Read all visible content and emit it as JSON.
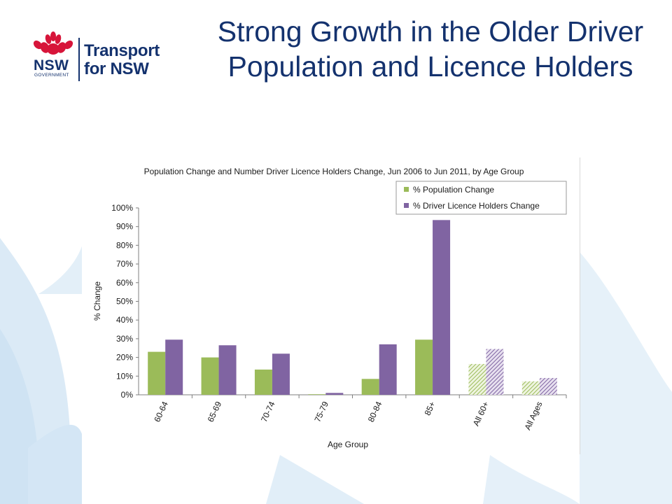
{
  "slide": {
    "title": "Strong Growth in the Older Driver Population and Licence Holders"
  },
  "logo": {
    "nsw": "NSW",
    "government": "GOVERNMENT",
    "transport": "Transport\nfor NSW"
  },
  "colors": {
    "title": "#14326e",
    "population": "#9bbb59",
    "licence": "#8064a2",
    "background_shape": "#dbeaf6"
  },
  "chart_data": {
    "type": "bar",
    "title": "Population Change and Number Driver Licence Holders Change, Jun 2006 to Jun 2011, by Age Group",
    "xlabel": "Age Group",
    "ylabel": "% Change",
    "ylim": [
      0,
      100
    ],
    "yticks": [
      "0%",
      "10%",
      "20%",
      "30%",
      "40%",
      "50%",
      "60%",
      "70%",
      "80%",
      "90%",
      "100%"
    ],
    "categories": [
      "60-64",
      "65-69",
      "70-74",
      "75-79",
      "80-84",
      "85+",
      "All 60+",
      "All Ages"
    ],
    "hatched_categories": [
      "All 60+",
      "All Ages"
    ],
    "series": [
      {
        "name": "% Population Change",
        "values": [
          23,
          20,
          13.5,
          0.3,
          8.5,
          29.5,
          16.5,
          7.2
        ]
      },
      {
        "name": "% Driver Licence Holders Change",
        "values": [
          29.5,
          26.5,
          22,
          1,
          27,
          93.5,
          24.5,
          9
        ]
      }
    ],
    "legend_position": "top-right",
    "grid": false
  }
}
